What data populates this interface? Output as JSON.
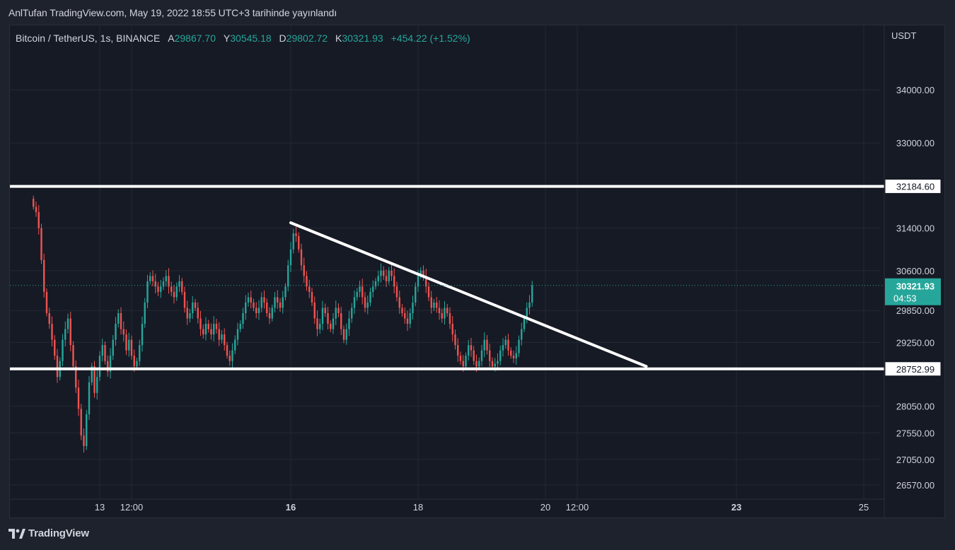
{
  "header": {
    "published": "AnlTufan TradingView.com, May 19, 2022 18:55 UTC+3 tarihinde yayınlandı"
  },
  "legend": {
    "symbol": "Bitcoin / TetherUS, 1s, BINANCE",
    "open_label": "A",
    "open": "29867.70",
    "high_label": "Y",
    "high": "30545.18",
    "low_label": "D",
    "low": "29802.72",
    "close_label": "K",
    "close": "30321.93",
    "change": "+454.22 (+1.52%)"
  },
  "axis": {
    "currency": "USDT"
  },
  "footer": {
    "brand": "TradingView"
  },
  "colors": {
    "up": "#26a69a",
    "down": "#ef5350",
    "line": "#ffffff",
    "background": "#161a25",
    "grid": "#242833",
    "text": "#d1d4dc"
  },
  "chart_data": {
    "type": "candlestick",
    "symbol": "BTCUSDT",
    "exchange": "BINANCE",
    "interval": "1h",
    "price_ticks": [
      "34000.00",
      "33000.00",
      "31400.00",
      "30600.00",
      "29850.00",
      "29250.00",
      "28050.00",
      "27550.00",
      "27050.00",
      "26570.00"
    ],
    "time_ticks": [
      {
        "label": "13",
        "day": 13,
        "hour": 0,
        "bold": false
      },
      {
        "label": "12:00",
        "day": 13,
        "hour": 12,
        "bold": false
      },
      {
        "label": "16",
        "day": 16,
        "hour": 0,
        "bold": true
      },
      {
        "label": "18",
        "day": 18,
        "hour": 0,
        "bold": false
      },
      {
        "label": "20",
        "day": 20,
        "hour": 0,
        "bold": false
      },
      {
        "label": "12:00",
        "day": 20,
        "hour": 12,
        "bold": false
      },
      {
        "label": "23",
        "day": 23,
        "hour": 0,
        "bold": true
      },
      {
        "label": "25",
        "day": 25,
        "hour": 0,
        "bold": false
      }
    ],
    "current_price": {
      "label": "30321.93",
      "value": 30321.93,
      "countdown": "04:53"
    },
    "horizontal_lines": [
      {
        "label": "32184.60",
        "value": 32184.6
      },
      {
        "label": "28752.99",
        "value": 28752.99
      }
    ],
    "trendline": {
      "from": {
        "day": 16,
        "hour": 0,
        "price": 31500
      },
      "to": {
        "day": 21,
        "hour": 14,
        "price": 28800
      }
    },
    "candles_anchor": {
      "day": 11,
      "hour": 23
    },
    "closes": [
      31800,
      31700,
      31400,
      30800,
      30200,
      29800,
      29600,
      29300,
      29000,
      28600,
      28900,
      29300,
      29500,
      29700,
      29200,
      28800,
      28400,
      28000,
      27500,
      27300,
      27900,
      28500,
      28800,
      28300,
      28600,
      29000,
      29200,
      28900,
      28700,
      29000,
      29300,
      29600,
      29800,
      29500,
      29400,
      29100,
      29300,
      29000,
      28800,
      28900,
      29200,
      29600,
      30000,
      30400,
      30500,
      30400,
      30300,
      30200,
      30300,
      30400,
      30500,
      30300,
      30200,
      30100,
      30300,
      30400,
      30200,
      29900,
      29700,
      29800,
      30000,
      29900,
      29700,
      29500,
      29400,
      29600,
      29500,
      29400,
      29600,
      29500,
      29300,
      29400,
      29200,
      29000,
      28900,
      29100,
      29300,
      29500,
      29600,
      29800,
      30000,
      30100,
      30000,
      29900,
      29800,
      29900,
      30100,
      30000,
      29800,
      29700,
      29900,
      30100,
      30000,
      29900,
      30100,
      30300,
      30700,
      31000,
      31300,
      31250,
      31000,
      30700,
      30500,
      30300,
      30200,
      30000,
      29700,
      29500,
      29600,
      29900,
      29800,
      29600,
      29500,
      29700,
      29900,
      29800,
      29500,
      29300,
      29500,
      29700,
      29900,
      30100,
      30200,
      30300,
      30100,
      29900,
      30000,
      30200,
      30300,
      30400,
      30500,
      30600,
      30500,
      30400,
      30600,
      30500,
      30300,
      30100,
      29900,
      29800,
      29700,
      29600,
      29800,
      30000,
      30300,
      30500,
      30600,
      30500,
      30300,
      30100,
      29900,
      30000,
      29900,
      29800,
      29700,
      29900,
      29800,
      29600,
      29400,
      29200,
      29000,
      28900,
      28800,
      29000,
      29200,
      29100,
      28900,
      28800,
      28900,
      29100,
      29300,
      29100,
      28900,
      28800,
      28850,
      28900,
      29100,
      29200,
      29300,
      29100,
      29000,
      28950,
      29050,
      29300,
      29500,
      29700,
      29900,
      30000,
      30321.93
    ]
  }
}
